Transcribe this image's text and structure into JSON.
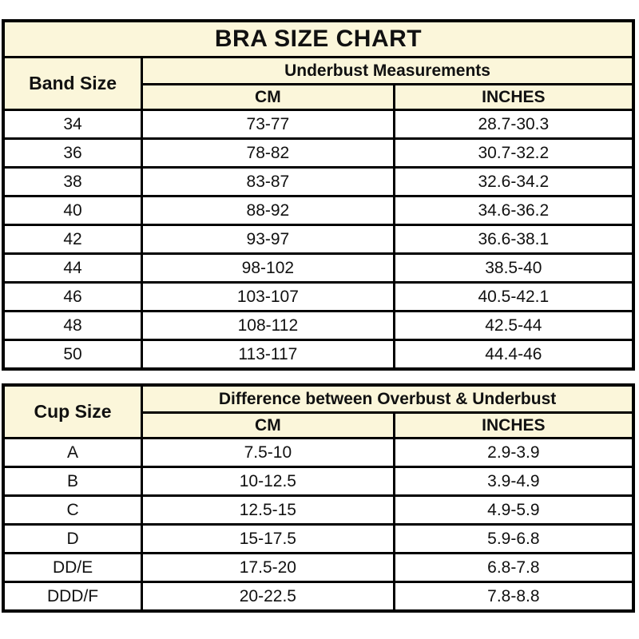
{
  "page_title": "BRA SIZE CHART",
  "colors": {
    "header_bg": "#FBF6DA",
    "cell_bg": "#FFFFFF",
    "border": "#000000",
    "text": "#111111"
  },
  "chart_data": [
    {
      "type": "table",
      "title": "BRA SIZE CHART",
      "corner_header": "Band Size",
      "group_header": "Underbust Measurements",
      "sub_headers": [
        "CM",
        "INCHES"
      ],
      "rows": [
        [
          "34",
          "73-77",
          "28.7-30.3"
        ],
        [
          "36",
          "78-82",
          "30.7-32.2"
        ],
        [
          "38",
          "83-87",
          "32.6-34.2"
        ],
        [
          "40",
          "88-92",
          "34.6-36.2"
        ],
        [
          "42",
          "93-97",
          "36.6-38.1"
        ],
        [
          "44",
          "98-102",
          "38.5-40"
        ],
        [
          "46",
          "103-107",
          "40.5-42.1"
        ],
        [
          "48",
          "108-112",
          "42.5-44"
        ],
        [
          "50",
          "113-117",
          "44.4-46"
        ]
      ]
    },
    {
      "type": "table",
      "corner_header": "Cup Size",
      "group_header": "Difference between Overbust & Underbust",
      "sub_headers": [
        "CM",
        "INCHES"
      ],
      "rows": [
        [
          "A",
          "7.5-10",
          "2.9-3.9"
        ],
        [
          "B",
          "10-12.5",
          "3.9-4.9"
        ],
        [
          "C",
          "12.5-15",
          "4.9-5.9"
        ],
        [
          "D",
          "15-17.5",
          "5.9-6.8"
        ],
        [
          "DD/E",
          "17.5-20",
          "6.8-7.8"
        ],
        [
          "DDD/F",
          "20-22.5",
          "7.8-8.8"
        ]
      ]
    }
  ]
}
